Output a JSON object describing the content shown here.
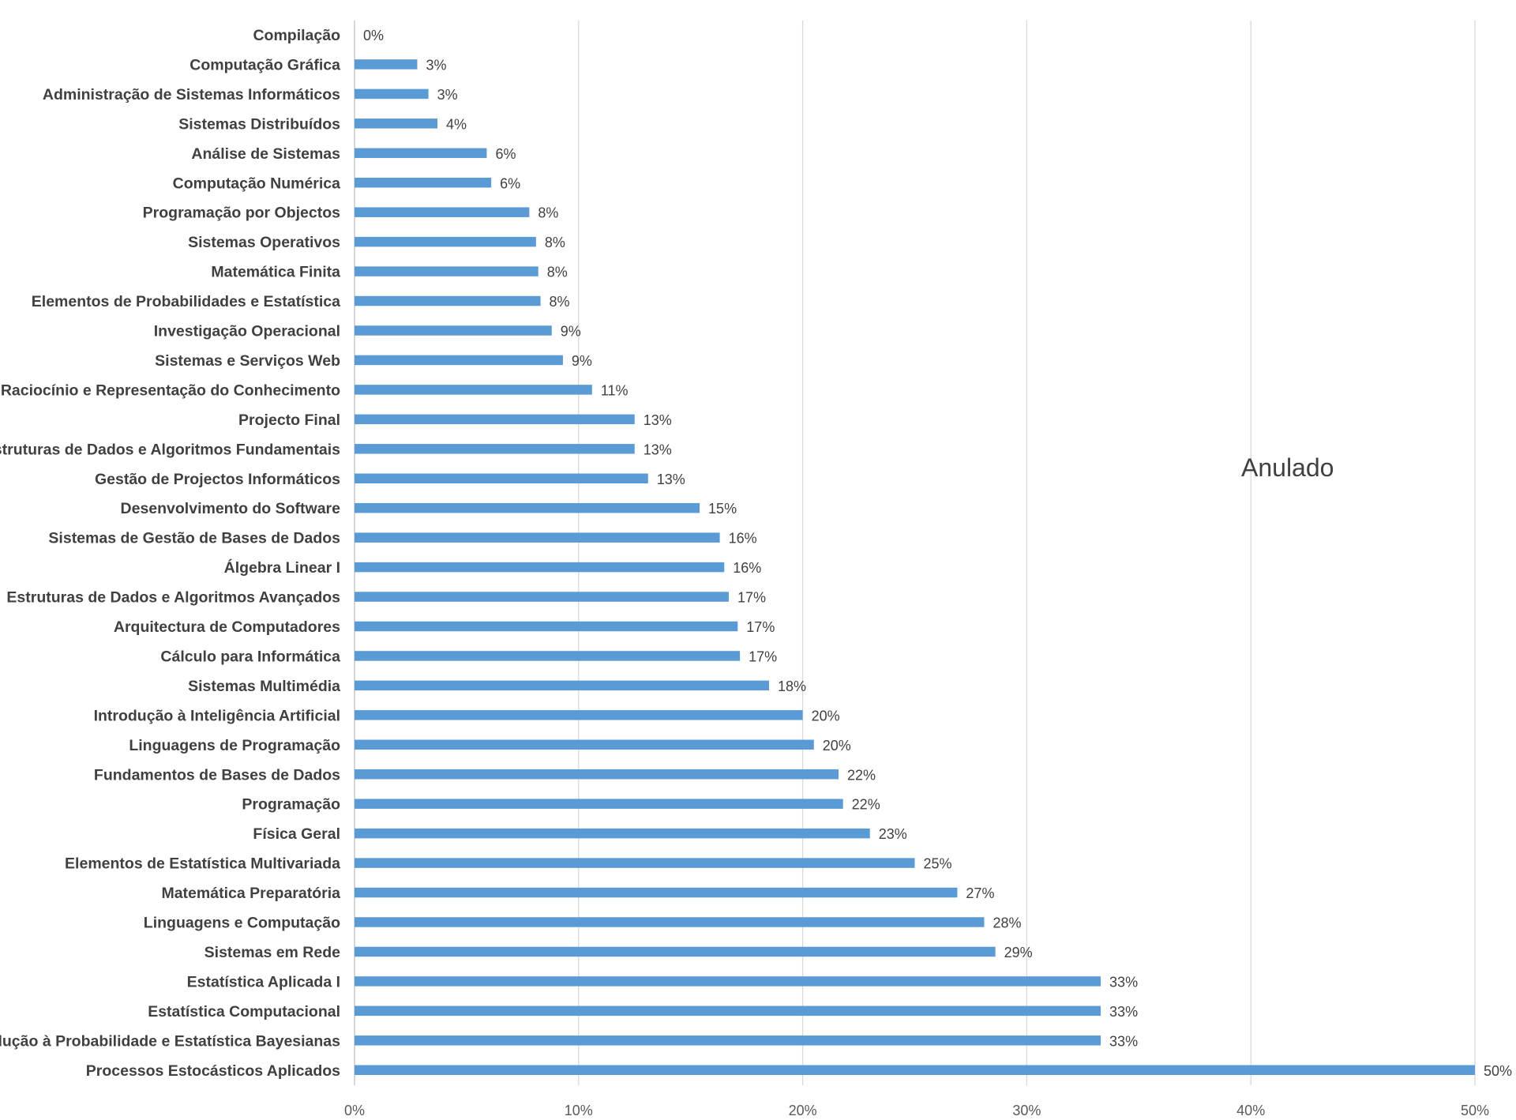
{
  "chart_data": {
    "type": "bar",
    "orientation": "horizontal",
    "title": "",
    "xlabel": "",
    "ylabel": "",
    "xlim": [
      0,
      50
    ],
    "x_ticks": [
      "0%",
      "10%",
      "20%",
      "30%",
      "40%",
      "50%"
    ],
    "grid": true,
    "bar_color": "#5b9bd5",
    "annotation": "Anulado",
    "categories": [
      "Compilação",
      "Computação Gráfica",
      "Administração de Sistemas Informáticos",
      "Sistemas Distribuídos",
      "Análise de Sistemas",
      "Computação Numérica",
      "Programação por Objectos",
      "Sistemas Operativos",
      "Matemática Finita",
      "Elementos de Probabilidades e Estatística",
      "Investigação Operacional",
      "Sistemas e Serviços Web",
      "Raciocínio e Representação do Conhecimento",
      "Projecto Final",
      "Estruturas de Dados e Algoritmos Fundamentais",
      "Gestão de Projectos Informáticos",
      "Desenvolvimento do Software",
      "Sistemas de Gestão de Bases de Dados",
      "Álgebra Linear I",
      "Estruturas de Dados e Algoritmos Avançados",
      "Arquitectura de Computadores",
      "Cálculo para Informática",
      "Sistemas Multimédia",
      "Introdução à Inteligência Artificial",
      "Linguagens de Programação",
      "Fundamentos de Bases de Dados",
      "Programação",
      "Física Geral",
      "Elementos de Estatística Multivariada",
      "Matemática Preparatória",
      "Linguagens e Computação",
      "Sistemas em Rede",
      "Estatística Aplicada I",
      "Estatística Computacional",
      "Introdução à Probabilidade e Estatística Bayesianas",
      "Processos Estocásticos Aplicados"
    ],
    "values": [
      0,
      2.8,
      3.3,
      3.7,
      5.9,
      6.1,
      7.8,
      8.1,
      8.2,
      8.3,
      8.8,
      9.3,
      10.6,
      12.5,
      12.5,
      13.1,
      15.4,
      16.3,
      16.5,
      16.7,
      17.1,
      17.2,
      18.5,
      20.0,
      20.5,
      21.6,
      21.8,
      23.0,
      25.0,
      26.9,
      28.1,
      28.6,
      33.3,
      33.3,
      33.3,
      50.0
    ],
    "value_labels": [
      "0%",
      "3%",
      "3%",
      "4%",
      "6%",
      "6%",
      "8%",
      "8%",
      "8%",
      "8%",
      "9%",
      "9%",
      "11%",
      "13%",
      "13%",
      "13%",
      "15%",
      "16%",
      "16%",
      "17%",
      "17%",
      "17%",
      "18%",
      "20%",
      "20%",
      "22%",
      "22%",
      "23%",
      "25%",
      "27%",
      "28%",
      "29%",
      "33%",
      "33%",
      "33%",
      "50%"
    ]
  }
}
